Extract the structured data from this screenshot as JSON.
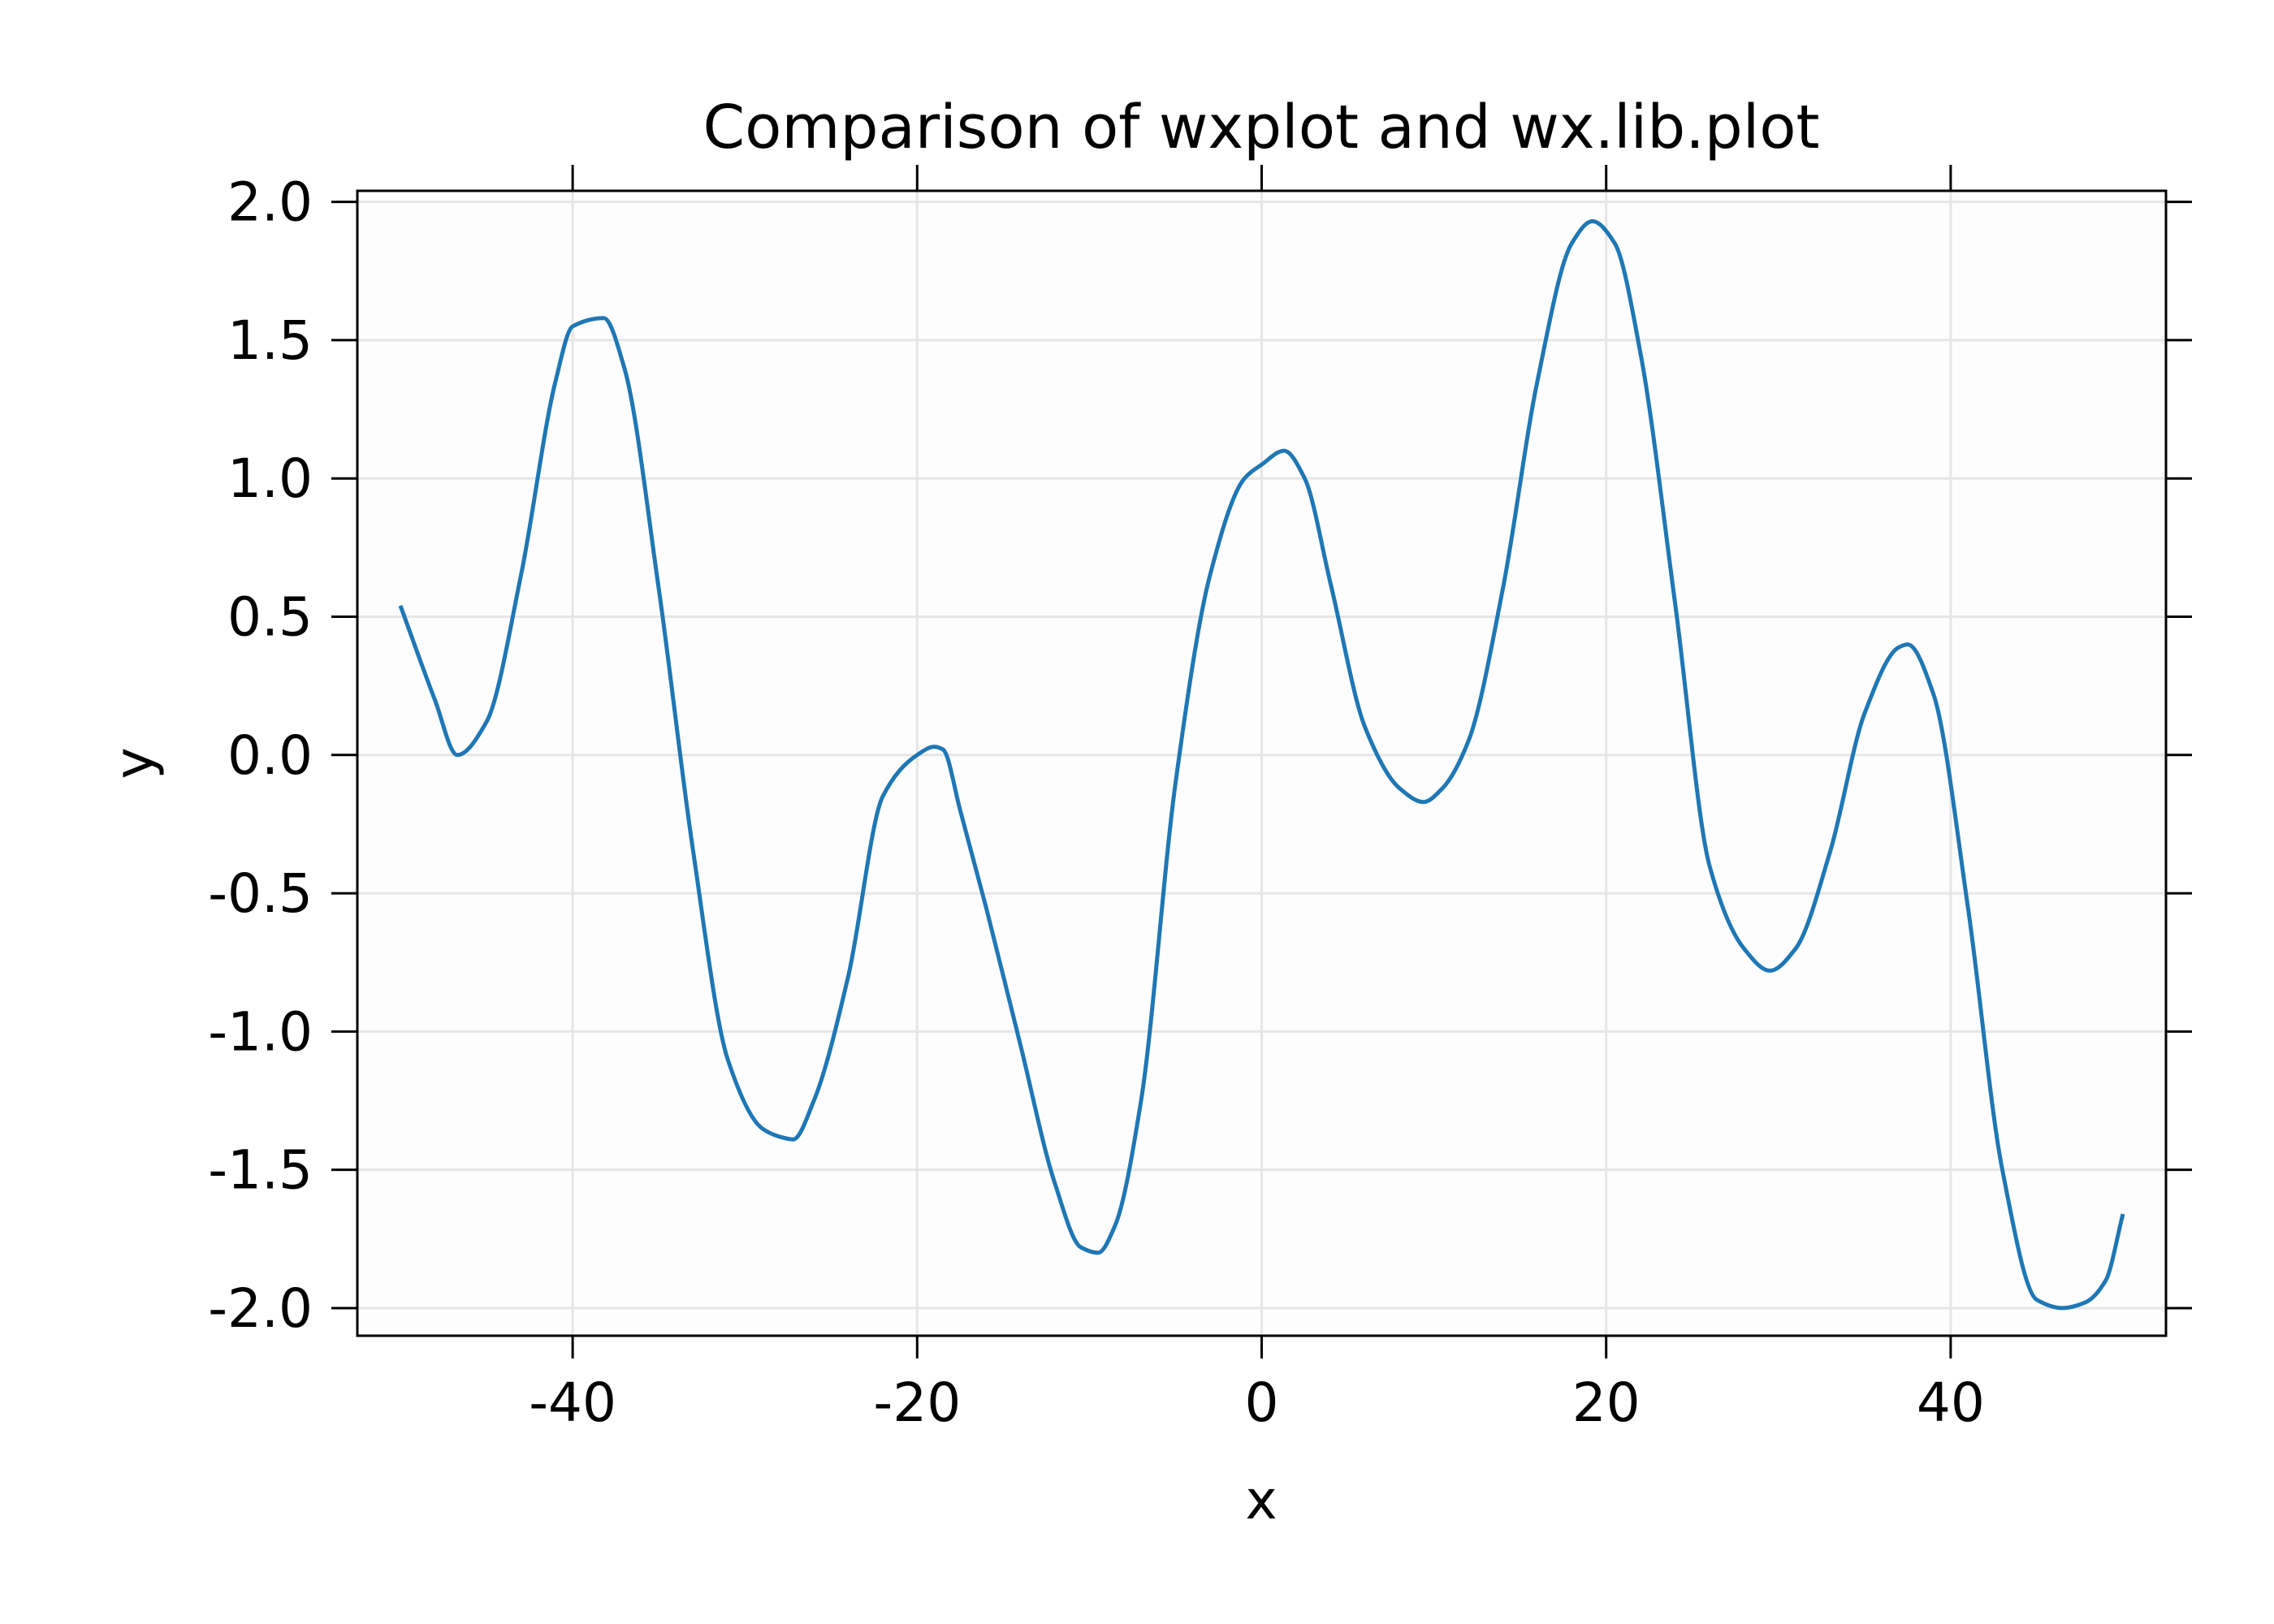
{
  "chart_data": {
    "type": "line",
    "title": "Comparison of wxplot and wx.lib.plot",
    "xlabel": "x",
    "ylabel": "y",
    "xlim": [
      -52.5,
      52.5
    ],
    "ylim": [
      -2.1,
      2.04
    ],
    "grid": true,
    "plot_background": "#fdfdfd",
    "x_ticks": [
      -40,
      -20,
      0,
      20,
      40
    ],
    "x_tick_labels": [
      "-40",
      "-20",
      "0",
      "20",
      "40"
    ],
    "y_ticks": [
      2.0,
      1.5,
      1.0,
      0.5,
      0.0,
      -0.5,
      -1.0,
      -1.5,
      -2.0
    ],
    "y_tick_labels": [
      "2.0",
      "1.5",
      "1.0",
      "0.5",
      "0.0",
      "-0.5",
      "-1.0",
      "-1.5",
      "-2.0"
    ],
    "series": [
      {
        "color": "#1f77b4",
        "x": [
          -50,
          -48,
          -46.7,
          -45,
          -43,
          -41,
          -40,
          -38.2,
          -37,
          -35,
          -33,
          -31,
          -29,
          -28,
          -27.2,
          -26,
          -24,
          -22,
          -20,
          -19,
          -18.5,
          -17.5,
          -16,
          -14,
          -12,
          -10.5,
          -9.5,
          -8.5,
          -7,
          -5,
          -3,
          -1,
          0,
          1.3,
          2.5,
          4,
          6,
          8,
          9.4,
          10.5,
          12,
          14,
          16,
          18,
          19.2,
          20.5,
          22,
          24,
          26,
          28,
          29.5,
          31,
          33,
          35,
          37,
          37.5,
          39,
          41,
          43,
          45,
          46.5,
          47.8,
          49,
          50
        ],
        "y": [
          0.54,
          0.2,
          0.0,
          0.12,
          0.65,
          1.35,
          1.55,
          1.58,
          1.4,
          0.6,
          -0.35,
          -1.1,
          -1.35,
          -1.38,
          -1.39,
          -1.25,
          -0.8,
          -0.15,
          0.0,
          0.03,
          0.02,
          -0.2,
          -0.55,
          -1.05,
          -1.55,
          -1.78,
          -1.8,
          -1.7,
          -1.25,
          -0.1,
          0.65,
          1.0,
          1.05,
          1.1,
          1.0,
          0.62,
          0.1,
          -0.12,
          -0.17,
          -0.12,
          0.05,
          0.6,
          1.35,
          1.85,
          1.93,
          1.85,
          1.45,
          0.55,
          -0.4,
          -0.7,
          -0.78,
          -0.7,
          -0.35,
          0.15,
          0.39,
          0.4,
          0.22,
          -0.55,
          -1.5,
          -1.97,
          -2.0,
          -1.98,
          -1.9,
          -1.66
        ]
      }
    ]
  }
}
